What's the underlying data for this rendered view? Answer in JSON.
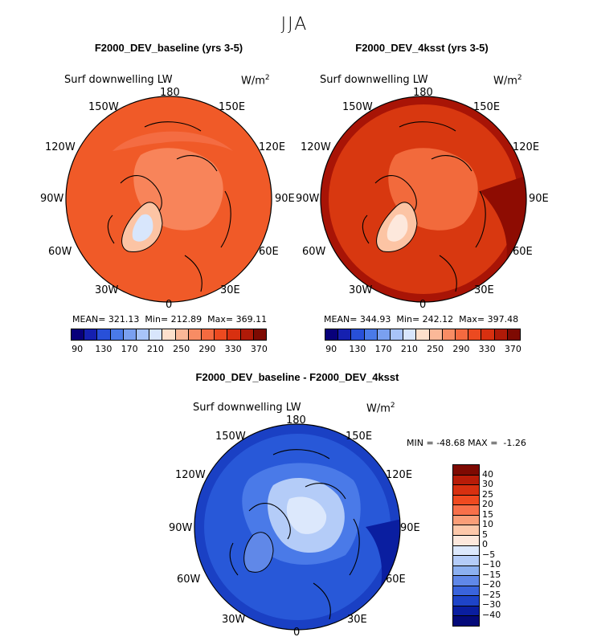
{
  "suptitle": "JJA",
  "panels": [
    {
      "title": "F2000_DEV_baseline (yrs 3-5)",
      "field": "Surf downwelling LW",
      "units": "W/m",
      "units_sup": "2",
      "lon_labels": [
        "180",
        "150E",
        "120E",
        "90E",
        "60E",
        "30E",
        "0",
        "30W",
        "60W",
        "90W",
        "120W",
        "150W"
      ],
      "stats": {
        "mean_label": "MEAN=",
        "mean": "321.13",
        "min_label": "Min=",
        "min": "212.89",
        "max_label": "Max=",
        "max": "369.11"
      },
      "colorbar_ticks": [
        "90",
        "130",
        "170",
        "210",
        "250",
        "290",
        "330",
        "370"
      ]
    },
    {
      "title": "F2000_DEV_4ksst (yrs 3-5)",
      "field": "Surf downwelling LW",
      "units": "W/m",
      "units_sup": "2",
      "lon_labels": [
        "180",
        "150E",
        "120E",
        "90E",
        "60E",
        "30E",
        "0",
        "30W",
        "60W",
        "90W",
        "120W",
        "150W"
      ],
      "stats": {
        "mean_label": "MEAN=",
        "mean": "344.93",
        "min_label": "Min=",
        "min": "242.12",
        "max_label": "Max=",
        "max": "397.48"
      },
      "colorbar_ticks": [
        "90",
        "130",
        "170",
        "210",
        "250",
        "290",
        "330",
        "370"
      ]
    },
    {
      "title": "F2000_DEV_baseline - F2000_DEV_4ksst",
      "field": "Surf downwelling LW",
      "units": "W/m",
      "units_sup": "2",
      "lon_labels": [
        "180",
        "150E",
        "120E",
        "90E",
        "60E",
        "30E",
        "0",
        "30W",
        "60W",
        "90W",
        "120W",
        "150W"
      ],
      "stats": {
        "min_label": "MIN =",
        "min": "-48.68",
        "max_label": "MAX =",
        "max": "-1.26"
      },
      "colorbar_ticks": [
        "40",
        "30",
        "25",
        "20",
        "15",
        "10",
        "5",
        "0",
        "−5",
        "−10",
        "−15",
        "−20",
        "−25",
        "−30",
        "−40"
      ]
    }
  ],
  "colors": {
    "abs_scale": [
      "#08007a",
      "#1520b0",
      "#2850d8",
      "#4a7ae8",
      "#7aa0f0",
      "#a8c4f8",
      "#d8e6fc",
      "#fde0cc",
      "#fbb898",
      "#f88c64",
      "#f46a40",
      "#ec4a20",
      "#d83010",
      "#b01a08",
      "#7e0a02"
    ],
    "diff_scale": [
      "#7e0a02",
      "#b81c08",
      "#d83010",
      "#f04a20",
      "#f8704a",
      "#fa9e78",
      "#fdc8aa",
      "#fde8dc",
      "#dce8fc",
      "#b4ccf8",
      "#8cb0f0",
      "#6088e8",
      "#3a64dc",
      "#1e44c8",
      "#0a1ea0",
      "#040a7a"
    ],
    "panel1_base": "#f05a28",
    "panel2_base": "#d83810",
    "panel3_base": "#2858d8"
  }
}
